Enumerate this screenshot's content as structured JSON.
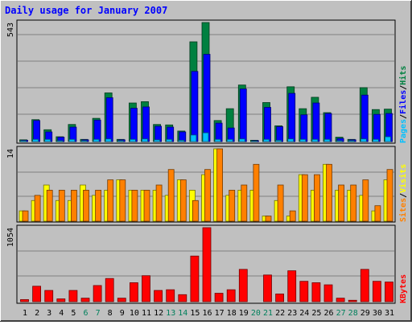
{
  "chart_data": [
    {
      "type": "bar",
      "title": "Daily usage for January 2007",
      "panel": "hits-files-pages",
      "ymax_label": "543",
      "legend": [
        {
          "text": "Pages",
          "color": "#00c0ff"
        },
        {
          "text": "/",
          "color": "#000000"
        },
        {
          "text": "Files",
          "color": "#0000ff"
        },
        {
          "text": "/",
          "color": "#000000"
        },
        {
          "text": "Hits",
          "color": "#008040"
        }
      ],
      "categories": [
        "1",
        "2",
        "3",
        "4",
        "5",
        "6",
        "7",
        "8",
        "9",
        "10",
        "11",
        "12",
        "13",
        "14",
        "15",
        "16",
        "17",
        "18",
        "19",
        "20",
        "21",
        "22",
        "23",
        "24",
        "25",
        "26",
        "27",
        "28",
        "29",
        "30",
        "31"
      ],
      "series": [
        {
          "name": "Hits",
          "color": "#008040",
          "values": [
            8,
            100,
            54,
            22,
            78,
            10,
            106,
            222,
            10,
            176,
            182,
            78,
            76,
            48,
            455,
            543,
            96,
            150,
            258,
            6,
            178,
            72,
            250,
            150,
            202,
            132,
            20,
            10,
            246,
            146,
            148
          ]
        },
        {
          "name": "Files",
          "color": "#0000ff",
          "values": [
            6,
            96,
            44,
            20,
            66,
            8,
            98,
            200,
            8,
            152,
            158,
            70,
            66,
            44,
            320,
            398,
            84,
            62,
            240,
            4,
            156,
            68,
            220,
            122,
            176,
            128,
            14,
            8,
            212,
            124,
            128
          ]
        },
        {
          "name": "Pages",
          "color": "#00c0ff",
          "values": [
            4,
            10,
            10,
            4,
            10,
            4,
            10,
            12,
            4,
            10,
            12,
            8,
            10,
            6,
            30,
            40,
            10,
            10,
            12,
            2,
            10,
            6,
            12,
            10,
            10,
            10,
            4,
            4,
            12,
            10,
            22
          ]
        }
      ]
    },
    {
      "type": "bar",
      "panel": "visits-sites",
      "ymax_label": "14",
      "legend": [
        {
          "text": "Sites",
          "color": "#ff8000"
        },
        {
          "text": "/",
          "color": "#000000"
        },
        {
          "text": "Visits",
          "color": "#ffff00"
        }
      ],
      "categories": [
        "1",
        "2",
        "3",
        "4",
        "5",
        "6",
        "7",
        "8",
        "9",
        "10",
        "11",
        "12",
        "13",
        "14",
        "15",
        "16",
        "17",
        "18",
        "19",
        "20",
        "21",
        "22",
        "23",
        "24",
        "25",
        "26",
        "27",
        "28",
        "29",
        "30",
        "31"
      ],
      "series": [
        {
          "name": "Visits",
          "color": "#ffff00",
          "values": [
            2,
            4,
            7,
            4,
            4,
            7,
            5,
            6,
            8,
            6,
            6,
            6,
            5,
            8,
            6,
            9,
            14,
            5,
            6,
            6,
            1,
            4,
            1,
            9,
            6,
            11,
            6,
            6,
            5,
            2,
            8
          ]
        },
        {
          "name": "Sites",
          "color": "#ff8000",
          "values": [
            2,
            5,
            6,
            6,
            6,
            6,
            6,
            8,
            8,
            6,
            6,
            7,
            10,
            8,
            4,
            10,
            14,
            6,
            7,
            11,
            1,
            7,
            2,
            9,
            9,
            11,
            7,
            7,
            8,
            3,
            10
          ]
        }
      ]
    },
    {
      "type": "bar",
      "panel": "kbytes",
      "ymax_label": "1054",
      "legend": [
        {
          "text": "KBytes",
          "color": "#ff0000"
        }
      ],
      "categories": [
        "1",
        "2",
        "3",
        "4",
        "5",
        "6",
        "7",
        "8",
        "9",
        "10",
        "11",
        "12",
        "13",
        "14",
        "15",
        "16",
        "17",
        "18",
        "19",
        "20",
        "21",
        "22",
        "23",
        "24",
        "25",
        "26",
        "27",
        "28",
        "29",
        "30",
        "31"
      ],
      "series": [
        {
          "name": "KBytes",
          "color": "#ff0000",
          "values": [
            30,
            220,
            160,
            40,
            160,
            50,
            230,
            330,
            50,
            270,
            370,
            160,
            170,
            100,
            650,
            1054,
            120,
            170,
            460,
            0,
            380,
            110,
            440,
            290,
            270,
            240,
            50,
            20,
            460,
            290,
            280
          ]
        }
      ]
    }
  ],
  "x_axis": {
    "labels": [
      "1",
      "2",
      "3",
      "4",
      "5",
      "6",
      "7",
      "8",
      "9",
      "10",
      "11",
      "12",
      "13",
      "14",
      "15",
      "16",
      "17",
      "18",
      "19",
      "20",
      "21",
      "22",
      "23",
      "24",
      "25",
      "26",
      "27",
      "28",
      "29",
      "30",
      "31"
    ],
    "weekend_days": [
      6,
      7,
      13,
      14,
      20,
      21,
      27,
      28
    ],
    "weekday_color": "#000000",
    "weekend_color": "#00805c"
  },
  "colors": {
    "background": "#c0c0c0",
    "title": "#0000ff",
    "grid": "#808080"
  }
}
